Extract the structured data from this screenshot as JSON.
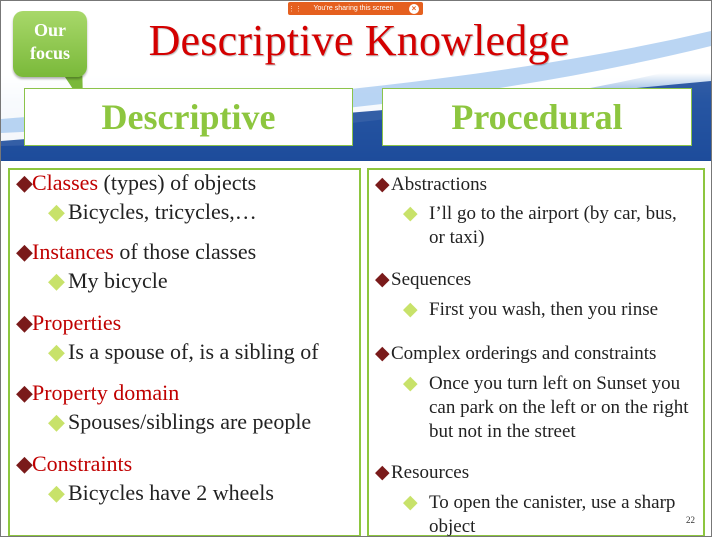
{
  "screen_share": {
    "label": "You're sharing this screen",
    "close_icon": "×"
  },
  "slide": {
    "title": "Descriptive Knowledge",
    "callout": "Our\nfocus",
    "headers": {
      "left": "Descriptive",
      "right": "Procedural"
    },
    "left_items": [
      {
        "label": "Classes",
        "rest": " (types) of objects",
        "sub": "Bicycles, tricycles,…"
      },
      {
        "label": "Instances",
        "rest": " of those classes",
        "sub": "My bicycle"
      },
      {
        "label": "Properties",
        "rest": "",
        "sub": "Is a spouse of, is a sibling of"
      },
      {
        "label": "Property domain",
        "rest": "",
        "sub": "Spouses/siblings are people"
      },
      {
        "label": "Constraints",
        "rest": "",
        "sub": "Bicycles have 2 wheels"
      }
    ],
    "right_items": [
      {
        "label": "Abstractions",
        "sub": "I’ll go to the airport (by car, bus, or taxi)"
      },
      {
        "label": "Sequences",
        "sub": "First you wash, then you rinse"
      },
      {
        "label": "Complex orderings and constraints",
        "sub": "Once you turn left on Sunset you can park on the left or on the right but not in the street"
      },
      {
        "label": "Resources",
        "sub": "To open the canister, use a sharp object"
      }
    ],
    "page_number": "22",
    "bullet_main": "◆",
    "bullet_sub": "◆"
  },
  "colors": {
    "title": "#d40000",
    "accent_green": "#8dc63f",
    "banner_blue": "#1f4e9c"
  }
}
